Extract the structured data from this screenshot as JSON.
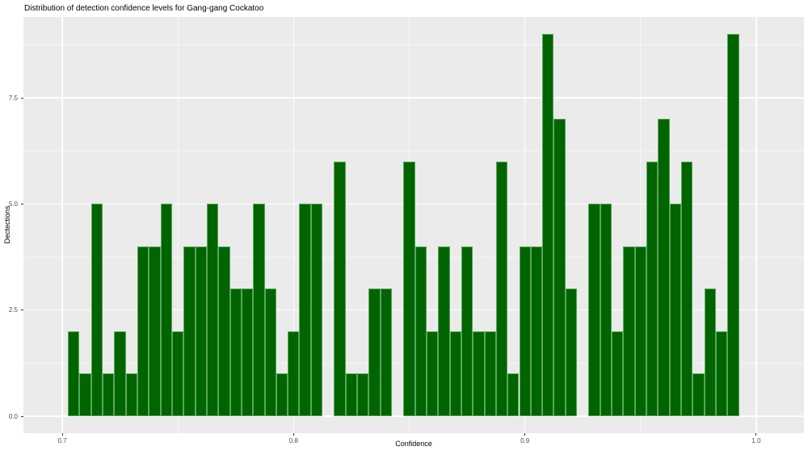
{
  "chart_data": {
    "type": "bar",
    "subtype": "histogram",
    "title": "Distribution of detection confidence levels for Gang-gang Cockatoo",
    "xlabel": "Confidence",
    "ylabel": "Dectections",
    "binwidth": 0.005,
    "bin_centers": [
      0.705,
      0.71,
      0.715,
      0.72,
      0.725,
      0.73,
      0.735,
      0.74,
      0.745,
      0.75,
      0.755,
      0.76,
      0.765,
      0.77,
      0.775,
      0.78,
      0.785,
      0.79,
      0.795,
      0.8,
      0.805,
      0.81,
      0.82,
      0.825,
      0.83,
      0.835,
      0.84,
      0.85,
      0.855,
      0.86,
      0.865,
      0.87,
      0.875,
      0.88,
      0.885,
      0.89,
      0.895,
      0.9,
      0.905,
      0.91,
      0.915,
      0.92,
      0.93,
      0.935,
      0.94,
      0.945,
      0.95,
      0.955,
      0.96,
      0.965,
      0.97,
      0.975,
      0.98,
      0.985,
      0.99
    ],
    "counts": [
      2,
      1,
      5,
      1,
      2,
      1,
      4,
      4,
      5,
      2,
      4,
      4,
      5,
      4,
      3,
      3,
      5,
      3,
      1,
      2,
      5,
      5,
      6,
      1,
      1,
      3,
      3,
      6,
      4,
      2,
      4,
      2,
      4,
      2,
      2,
      6,
      1,
      4,
      4,
      9,
      7,
      3,
      5,
      5,
      2,
      4,
      4,
      6,
      7,
      5,
      6,
      1,
      3,
      2,
      9
    ],
    "x_ticks": [
      {
        "label": "0.7",
        "value": 0.7
      },
      {
        "label": "0.8",
        "value": 0.8
      },
      {
        "label": "0.9",
        "value": 0.9
      },
      {
        "label": "1.0",
        "value": 1.0
      }
    ],
    "x_minor": [
      0.75,
      0.85,
      0.95
    ],
    "y_ticks": [
      {
        "label": "0.0",
        "value": 0
      },
      {
        "label": "2.5",
        "value": 2.5
      },
      {
        "label": "5.0",
        "value": 5
      },
      {
        "label": "7.5",
        "value": 7.5
      }
    ],
    "y_minor": [
      1.25,
      3.75,
      6.25,
      8.75
    ],
    "xlim": [
      0.683,
      1.021
    ],
    "ylim": [
      -0.4,
      9.41
    ],
    "grid": "major-and-minor",
    "legend_position": "none",
    "colors": {
      "bar_fill": "#006400",
      "bar_border": "#58a758",
      "panel_background": "#ebebeb",
      "gridline": "#ffffff",
      "tick_label": "#4d4d4d",
      "axis_text": "#000000",
      "tick_mark": "#333333"
    }
  }
}
